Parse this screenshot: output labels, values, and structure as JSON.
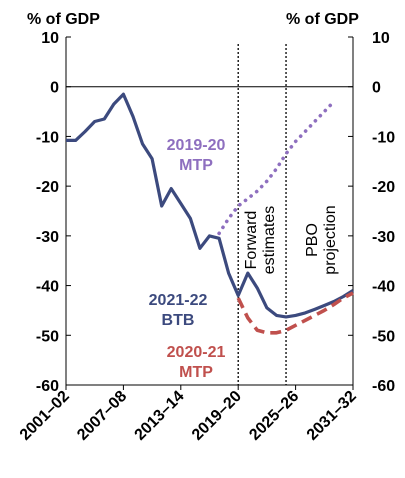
{
  "chart_data": {
    "type": "line",
    "unit_label_left": "% of GDP",
    "unit_label_right": "% of GDP",
    "ylim": [
      -60,
      10
    ],
    "yticks": [
      "10",
      "0",
      "-10",
      "-20",
      "-30",
      "-40",
      "-50",
      "-60"
    ],
    "ytick_values": [
      10,
      0,
      -10,
      -20,
      -30,
      -40,
      -50,
      -60
    ],
    "xlim": [
      2001,
      2031
    ],
    "xticks": [
      "2001–02",
      "2007–08",
      "2013–14",
      "2019–20",
      "2025–26",
      "2031–32"
    ],
    "xtick_values": [
      2001,
      2007,
      2013,
      2019,
      2025,
      2031
    ],
    "grid": false,
    "annotations": {
      "forward_estimates": "Forward estimates",
      "pbo_projection": "PBO projection"
    },
    "dividers": [
      2019,
      2024
    ],
    "series": [
      {
        "name_lines": [
          "2021-22",
          "BTB"
        ],
        "color": "#3C4A7E",
        "style": "solid",
        "points": [
          [
            2001,
            -10.8
          ],
          [
            2002,
            -10.8
          ],
          [
            2003,
            -9
          ],
          [
            2004,
            -7
          ],
          [
            2005,
            -6.5
          ],
          [
            2006,
            -3.5
          ],
          [
            2007,
            -1.5
          ],
          [
            2008,
            -6
          ],
          [
            2009,
            -11.5
          ],
          [
            2010,
            -14.5
          ],
          [
            2011,
            -24
          ],
          [
            2012,
            -20.5
          ],
          [
            2013,
            -23.5
          ],
          [
            2014,
            -26.5
          ],
          [
            2015,
            -32.5
          ],
          [
            2016,
            -30
          ],
          [
            2017,
            -30.5
          ],
          [
            2018,
            -37.5
          ],
          [
            2019,
            -42
          ],
          [
            2020,
            -37.5
          ],
          [
            2021,
            -40.5
          ],
          [
            2022,
            -44.5
          ],
          [
            2023,
            -46
          ],
          [
            2024,
            -46.3
          ],
          [
            2025,
            -46
          ],
          [
            2026,
            -45.5
          ],
          [
            2027,
            -44.8
          ],
          [
            2028,
            -44
          ],
          [
            2029,
            -43.2
          ],
          [
            2030,
            -42.2
          ],
          [
            2031,
            -41
          ]
        ]
      },
      {
        "name_lines": [
          "2020-21",
          "MTP"
        ],
        "color": "#C0504D",
        "style": "dashed",
        "points": [
          [
            2019,
            -42.5
          ],
          [
            2020,
            -46.5
          ],
          [
            2021,
            -49
          ],
          [
            2022,
            -49.5
          ],
          [
            2023,
            -49.5
          ],
          [
            2024,
            -49
          ],
          [
            2025,
            -48
          ],
          [
            2026,
            -47
          ],
          [
            2027,
            -46
          ],
          [
            2028,
            -45
          ],
          [
            2029,
            -43.8
          ],
          [
            2030,
            -42.5
          ],
          [
            2031,
            -41.5
          ]
        ]
      },
      {
        "name_lines": [
          "2019-20",
          "MTP"
        ],
        "color": "#8E6FBF",
        "style": "dotted",
        "points": [
          [
            2017,
            -29.5
          ],
          [
            2018,
            -26.5
          ],
          [
            2019,
            -24
          ],
          [
            2020,
            -22.5
          ],
          [
            2021,
            -21
          ],
          [
            2022,
            -19
          ],
          [
            2023,
            -16.5
          ],
          [
            2024,
            -13.5
          ],
          [
            2025,
            -11
          ],
          [
            2026,
            -9
          ],
          [
            2027,
            -7
          ],
          [
            2028,
            -5
          ],
          [
            2029,
            -3
          ]
        ]
      }
    ]
  }
}
